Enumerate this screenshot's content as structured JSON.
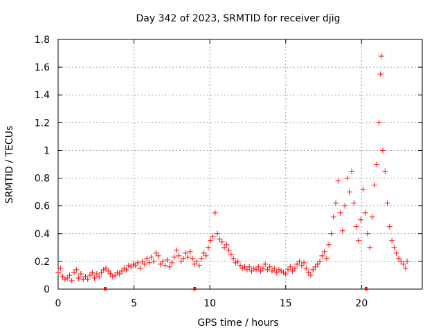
{
  "chart_data": {
    "type": "scatter",
    "title": "Day 342 of 2023, SRMTID for receiver djig",
    "xlabel": "GPS time / hours",
    "ylabel": "SRMTID / TECUs",
    "xlim": [
      0,
      24
    ],
    "ylim": [
      0,
      1.8
    ],
    "xticks": [
      0,
      5,
      10,
      15,
      20
    ],
    "yticks": [
      0,
      0.2,
      0.4,
      0.6,
      0.8,
      1,
      1.2,
      1.4,
      1.6,
      1.8
    ],
    "xtick_labels": [
      "0",
      "5",
      "10",
      "15",
      "20"
    ],
    "ytick_labels": [
      "0",
      "0.2",
      "0.4",
      "0.6",
      "0.8",
      "1",
      "1.2",
      "1.4",
      "1.6",
      "1.8"
    ],
    "grid": true,
    "legend": null,
    "series": [
      {
        "name": "SRMTID",
        "marker": "+",
        "color": "#ff0000",
        "points": [
          [
            0.0,
            0.12
          ],
          [
            0.15,
            0.15
          ],
          [
            0.3,
            0.09
          ],
          [
            0.45,
            0.07
          ],
          [
            0.6,
            0.08
          ],
          [
            0.75,
            0.1
          ],
          [
            0.9,
            0.06
          ],
          [
            1.05,
            0.12
          ],
          [
            1.2,
            0.14
          ],
          [
            1.35,
            0.08
          ],
          [
            1.5,
            0.11
          ],
          [
            1.65,
            0.07
          ],
          [
            1.8,
            0.09
          ],
          [
            1.95,
            0.07
          ],
          [
            2.1,
            0.1
          ],
          [
            2.25,
            0.12
          ],
          [
            2.4,
            0.08
          ],
          [
            2.55,
            0.11
          ],
          [
            2.7,
            0.09
          ],
          [
            2.85,
            0.12
          ],
          [
            3.0,
            0.14
          ],
          [
            3.15,
            0.15
          ],
          [
            3.3,
            0.13
          ],
          [
            3.45,
            0.11
          ],
          [
            3.6,
            0.09
          ],
          [
            3.75,
            0.1
          ],
          [
            3.9,
            0.12
          ],
          [
            4.05,
            0.11
          ],
          [
            4.2,
            0.13
          ],
          [
            4.35,
            0.15
          ],
          [
            4.5,
            0.14
          ],
          [
            4.65,
            0.17
          ],
          [
            4.8,
            0.16
          ],
          [
            4.95,
            0.18
          ],
          [
            5.1,
            0.17
          ],
          [
            5.25,
            0.19
          ],
          [
            5.4,
            0.15
          ],
          [
            5.55,
            0.2
          ],
          [
            5.7,
            0.18
          ],
          [
            5.85,
            0.22
          ],
          [
            6.0,
            0.19
          ],
          [
            6.15,
            0.23
          ],
          [
            6.3,
            0.2
          ],
          [
            6.45,
            0.26
          ],
          [
            6.6,
            0.24
          ],
          [
            6.75,
            0.18
          ],
          [
            6.9,
            0.2
          ],
          [
            7.05,
            0.17
          ],
          [
            7.2,
            0.21
          ],
          [
            7.35,
            0.16
          ],
          [
            7.5,
            0.19
          ],
          [
            7.65,
            0.23
          ],
          [
            7.8,
            0.28
          ],
          [
            7.95,
            0.24
          ],
          [
            8.1,
            0.2
          ],
          [
            8.25,
            0.22
          ],
          [
            8.4,
            0.26
          ],
          [
            8.55,
            0.23
          ],
          [
            8.7,
            0.27
          ],
          [
            8.85,
            0.22
          ],
          [
            9.0,
            0.18
          ],
          [
            9.15,
            0.2
          ],
          [
            9.3,
            0.17
          ],
          [
            9.45,
            0.22
          ],
          [
            9.6,
            0.26
          ],
          [
            9.75,
            0.24
          ],
          [
            9.9,
            0.3
          ],
          [
            10.05,
            0.35
          ],
          [
            10.2,
            0.38
          ],
          [
            10.35,
            0.55
          ],
          [
            10.5,
            0.4
          ],
          [
            10.65,
            0.36
          ],
          [
            10.8,
            0.34
          ],
          [
            10.95,
            0.3
          ],
          [
            11.1,
            0.32
          ],
          [
            11.25,
            0.28
          ],
          [
            11.4,
            0.25
          ],
          [
            11.55,
            0.22
          ],
          [
            11.7,
            0.19
          ],
          [
            11.85,
            0.2
          ],
          [
            12.0,
            0.17
          ],
          [
            12.15,
            0.15
          ],
          [
            12.3,
            0.16
          ],
          [
            12.45,
            0.14
          ],
          [
            12.6,
            0.16
          ],
          [
            12.75,
            0.13
          ],
          [
            12.9,
            0.15
          ],
          [
            13.05,
            0.14
          ],
          [
            13.2,
            0.16
          ],
          [
            13.35,
            0.13
          ],
          [
            13.5,
            0.15
          ],
          [
            13.65,
            0.18
          ],
          [
            13.8,
            0.14
          ],
          [
            13.95,
            0.16
          ],
          [
            14.1,
            0.13
          ],
          [
            14.25,
            0.15
          ],
          [
            14.4,
            0.12
          ],
          [
            14.55,
            0.14
          ],
          [
            14.7,
            0.13
          ],
          [
            14.85,
            0.12
          ],
          [
            15.0,
            0.11
          ],
          [
            15.15,
            0.14
          ],
          [
            15.3,
            0.16
          ],
          [
            15.45,
            0.13
          ],
          [
            15.6,
            0.15
          ],
          [
            15.75,
            0.18
          ],
          [
            15.9,
            0.2
          ],
          [
            16.05,
            0.17
          ],
          [
            16.2,
            0.19
          ],
          [
            16.35,
            0.15
          ],
          [
            16.5,
            0.12
          ],
          [
            16.65,
            0.1
          ],
          [
            16.8,
            0.14
          ],
          [
            16.95,
            0.16
          ],
          [
            17.1,
            0.18
          ],
          [
            17.25,
            0.2
          ],
          [
            17.4,
            0.24
          ],
          [
            17.55,
            0.27
          ],
          [
            17.7,
            0.22
          ],
          [
            17.85,
            0.32
          ],
          [
            18.0,
            0.4
          ],
          [
            18.15,
            0.52
          ],
          [
            18.3,
            0.62
          ],
          [
            18.45,
            0.78
          ],
          [
            18.6,
            0.55
          ],
          [
            18.75,
            0.42
          ],
          [
            18.9,
            0.6
          ],
          [
            19.05,
            0.8
          ],
          [
            19.2,
            0.7
          ],
          [
            19.35,
            0.85
          ],
          [
            19.5,
            0.62
          ],
          [
            19.65,
            0.45
          ],
          [
            19.8,
            0.35
          ],
          [
            19.95,
            0.5
          ],
          [
            20.1,
            0.72
          ],
          [
            20.25,
            0.55
          ],
          [
            20.4,
            0.4
          ],
          [
            20.55,
            0.3
          ],
          [
            20.7,
            0.52
          ],
          [
            20.85,
            0.75
          ],
          [
            21.0,
            0.9
          ],
          [
            21.15,
            1.2
          ],
          [
            21.25,
            1.55
          ],
          [
            21.3,
            1.68
          ],
          [
            21.4,
            1.0
          ],
          [
            21.55,
            0.85
          ],
          [
            21.7,
            0.62
          ],
          [
            21.85,
            0.45
          ],
          [
            22.0,
            0.35
          ],
          [
            22.15,
            0.3
          ],
          [
            22.3,
            0.26
          ],
          [
            22.45,
            0.22
          ],
          [
            22.6,
            0.2
          ],
          [
            22.75,
            0.18
          ],
          [
            22.9,
            0.15
          ],
          [
            23.0,
            0.2
          ]
        ]
      }
    ],
    "gap_markers": [
      3.1,
      9.0,
      20.3
    ]
  }
}
